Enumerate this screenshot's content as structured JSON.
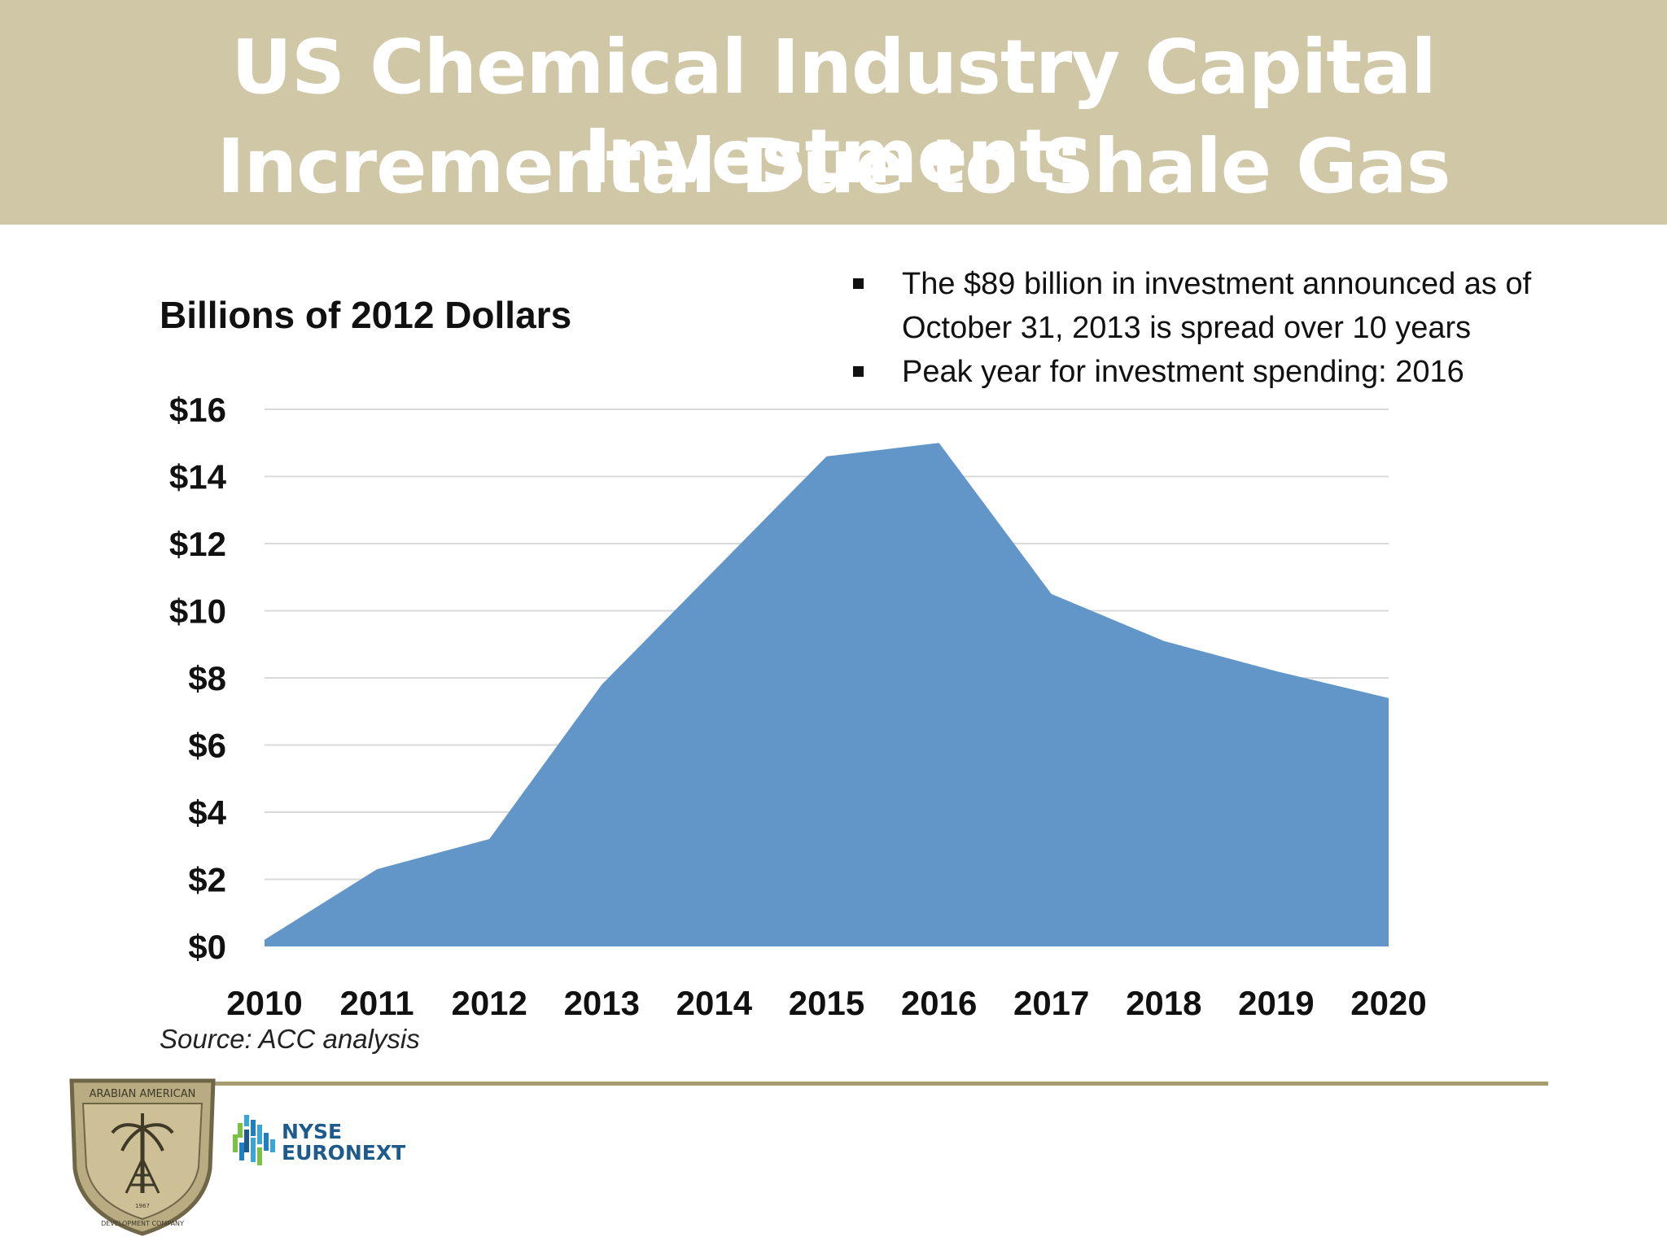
{
  "slide": {
    "title_line_1": "US Chemical Industry Capital Investment:",
    "title_line_2": "Incremental Due to Shale Gas",
    "notes": [
      "The $89 billion in investment announced as of October 31, 2013 is spread over 10 years",
      "Peak year for investment spending: 2016"
    ],
    "source": "Source: ACC analysis",
    "logos": {
      "aadc_text_top": "ARABIAN AMERICAN",
      "aadc_text_bottom": "DEVELOPMENT COMPANY",
      "aadc_year": "1967",
      "nyse_line_1": "NYSE",
      "nyse_line_2": "EURONEXT"
    }
  },
  "chart_data": {
    "type": "area",
    "ylabel": "Billions of 2012 Dollars",
    "x": [
      "2010",
      "2011",
      "2012",
      "2013",
      "2014",
      "2015",
      "2016",
      "2017",
      "2018",
      "2019",
      "2020"
    ],
    "series": [
      {
        "values": [
          0.2,
          2.3,
          3.2,
          7.8,
          11.2,
          14.6,
          15.0,
          10.5,
          9.1,
          8.2,
          7.4
        ]
      }
    ],
    "ylim": [
      0,
      16
    ],
    "yticks": [
      0,
      2,
      4,
      6,
      8,
      10,
      12,
      14,
      16
    ],
    "ytick_labels": [
      "$0",
      "$2",
      "$4",
      "$6",
      "$8",
      "$10",
      "$12",
      "$14",
      "$16"
    ],
    "grid": true,
    "legend": "none",
    "colors": {
      "area": "#6296c8",
      "grid": "#d9d9d9"
    }
  }
}
